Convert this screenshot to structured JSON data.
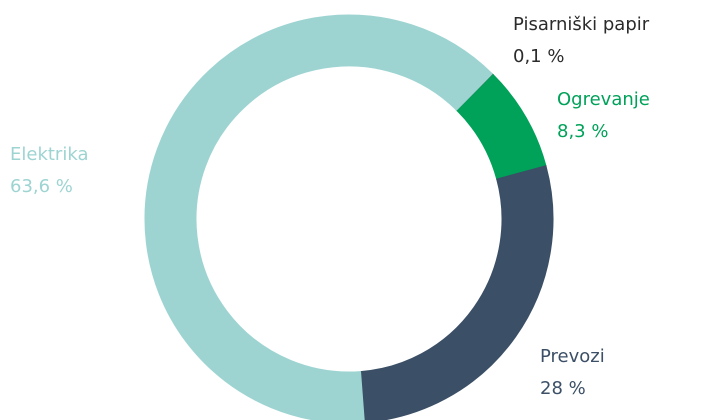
{
  "chart_data": {
    "type": "donut",
    "categories": [
      "Pisarniški papir",
      "Ogrevanje",
      "Prevozi",
      "Elektrika"
    ],
    "values": [
      0.1,
      8.3,
      28,
      63.6
    ],
    "value_labels": [
      "0,1 %",
      "8,3 %",
      "28 %",
      "63,6 %"
    ],
    "colors": [
      "#1e3a2c",
      "#00a159",
      "#3b4f66",
      "#9dd4d2"
    ],
    "label_colors": [
      "#2b2b2b",
      "#00a159",
      "#3b4f66",
      "#9dd4d2"
    ]
  }
}
